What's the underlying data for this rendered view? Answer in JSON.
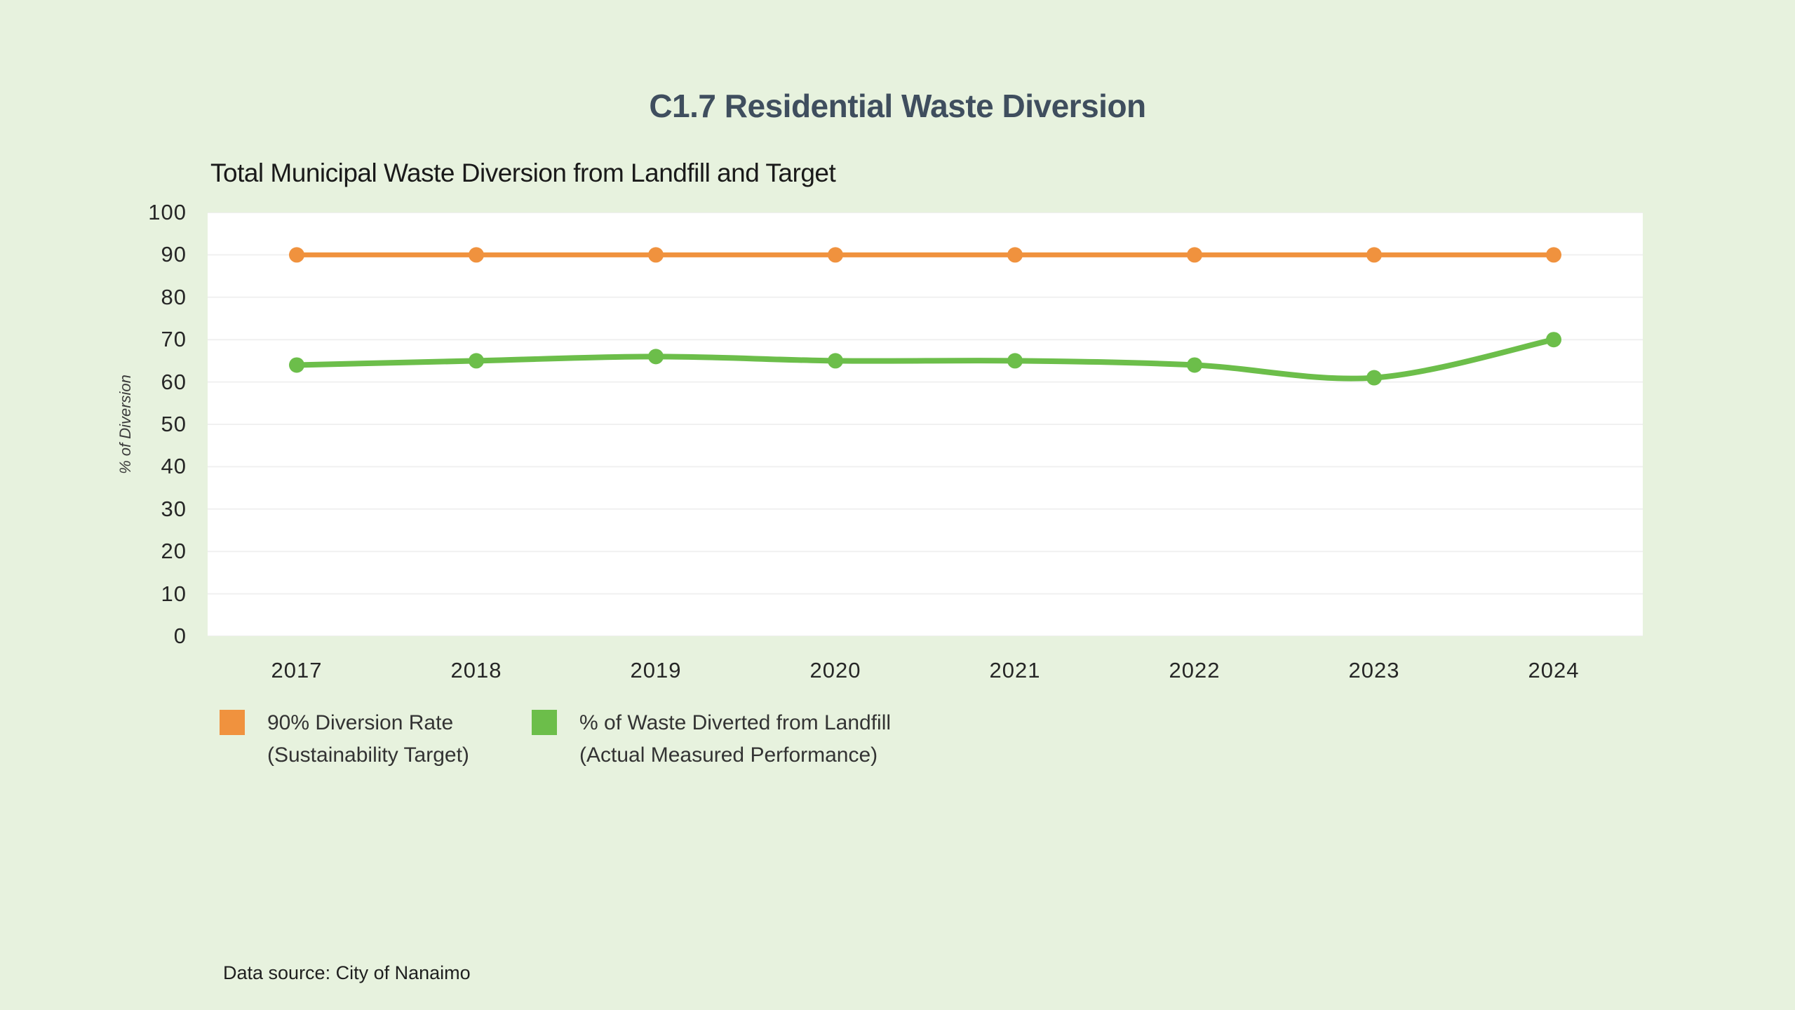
{
  "page": {
    "title": "C1.7 Residential Waste Diversion",
    "data_source": "Data source: City of Nanaimo",
    "background_color": "#E7F2DE",
    "plot_background_color": "#FFFFFF"
  },
  "chart_data": {
    "type": "line",
    "title": "Total Municipal Waste Diversion from Landfill and Target",
    "xlabel": "",
    "ylabel": "% of Diversion",
    "ylim": [
      0,
      100
    ],
    "yticks": [
      "0",
      "10",
      "20",
      "30",
      "40",
      "50",
      "60",
      "70",
      "80",
      "90",
      "100"
    ],
    "grid": "horizontal",
    "legend_position": "bottom-left",
    "categories": [
      "2017",
      "2018",
      "2019",
      "2020",
      "2021",
      "2022",
      "2023",
      "2024"
    ],
    "series": [
      {
        "name": "90% Diversion Rate",
        "name_line2": "(Sustainability Target)",
        "color": "#F0923E",
        "smooth": false,
        "values": [
          90,
          90,
          90,
          90,
          90,
          90,
          90,
          90
        ]
      },
      {
        "name": "% of Waste Diverted from Landfill",
        "name_line2": "(Actual Measured Performance)",
        "color": "#6CBE4A",
        "smooth": true,
        "values": [
          64,
          65,
          66,
          65,
          65,
          64,
          61,
          70
        ]
      }
    ]
  }
}
